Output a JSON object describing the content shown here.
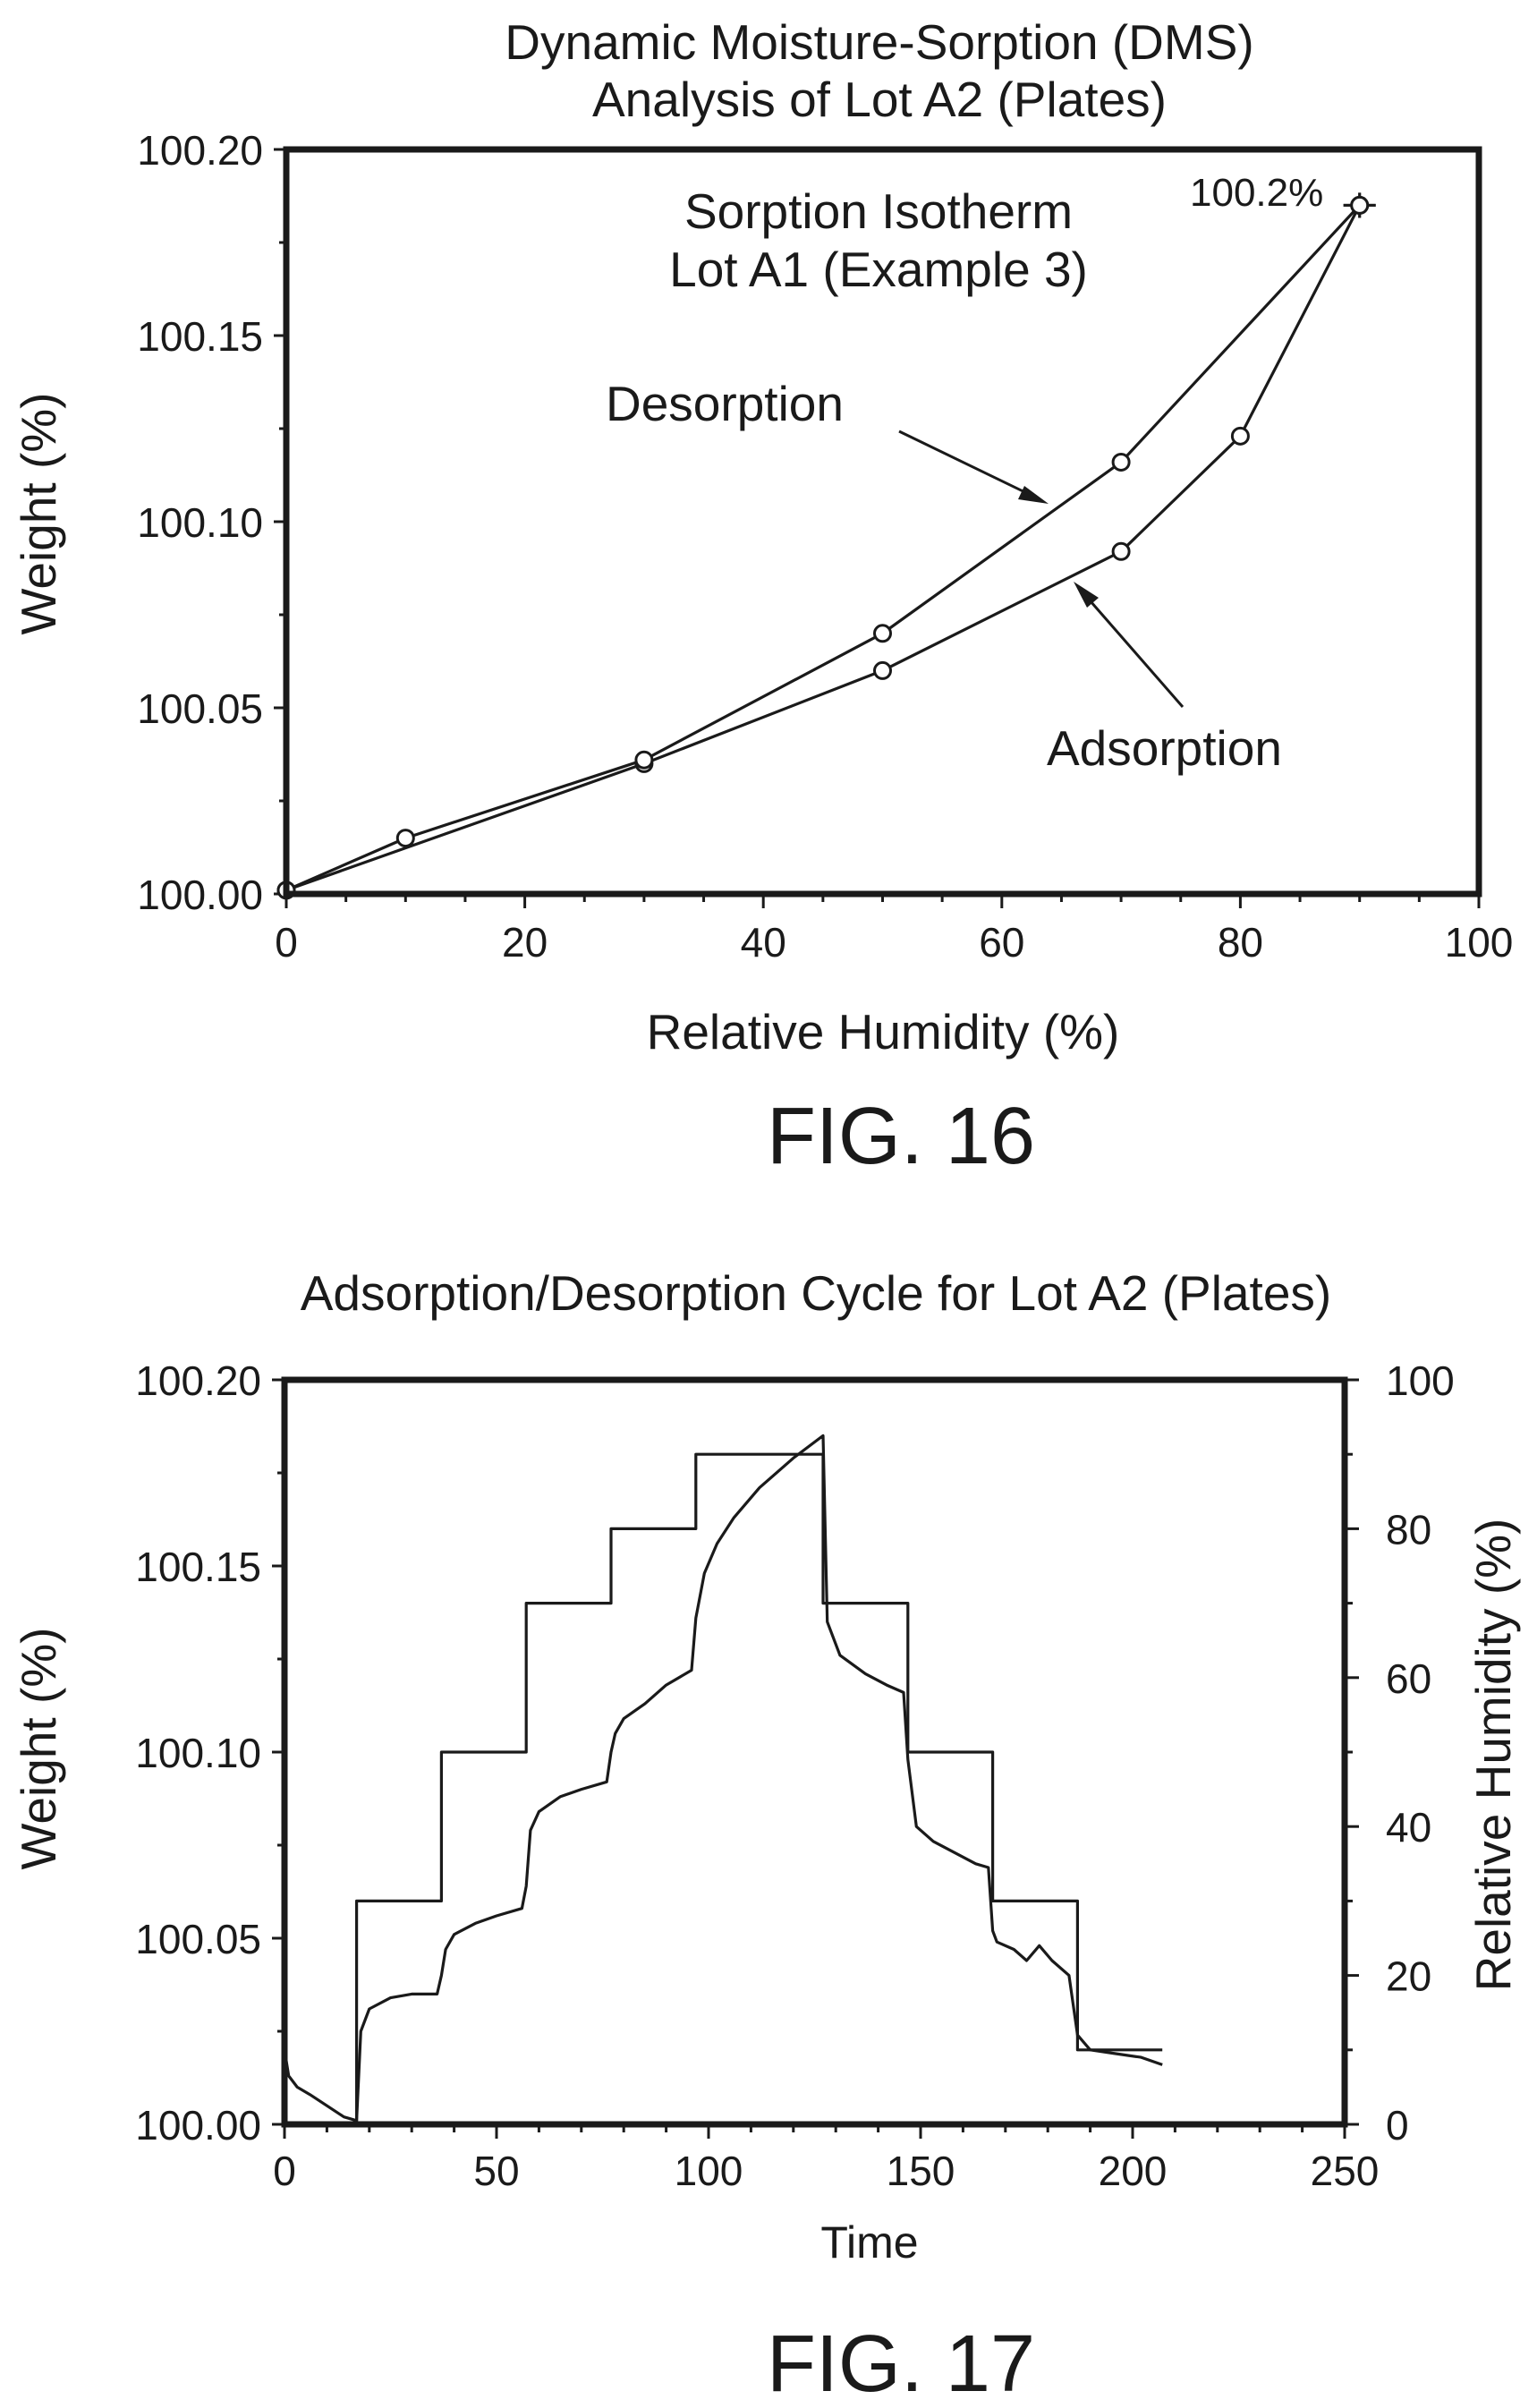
{
  "colors": {
    "ink": "#1a1a1a",
    "background": "#ffffff"
  },
  "chart_data": [
    {
      "figure_label": "FIG. 16",
      "type": "line",
      "title": [
        "Dynamic Moisture-Sorption (DMS)",
        "Analysis of Lot A2 (Plates)"
      ],
      "inner_title": [
        "Sorption Isotherm",
        "Lot A1 (Example 3)"
      ],
      "xlabel": "Relative Humidity (%)",
      "ylabel": "Weight (%)",
      "xlim": [
        0,
        100
      ],
      "ylim": [
        100.0,
        100.2
      ],
      "xticks": [
        "0",
        "20",
        "40",
        "60",
        "80",
        "100"
      ],
      "yticks": [
        "100.00",
        "100.05",
        "100.10",
        "100.15",
        "100.20"
      ],
      "grid": false,
      "series": [
        {
          "name": "Adsorption",
          "x": [
            0,
            30,
            50,
            70,
            80,
            90
          ],
          "y": [
            100.001,
            100.035,
            100.06,
            100.092,
            100.123,
            100.185
          ]
        },
        {
          "name": "Desorption",
          "x": [
            90,
            70,
            50,
            30,
            10,
            0
          ],
          "y": [
            100.185,
            100.116,
            100.07,
            100.036,
            100.015,
            100.001
          ]
        }
      ],
      "annotations": [
        "100.2%"
      ]
    },
    {
      "figure_label": "FIG. 17",
      "type": "line",
      "title": "Adsorption/Desorption Cycle for Lot A2 (Plates)",
      "xlabel": "Time",
      "ylabel": "Weight (%)",
      "y2label": "Relative Humidity (%)",
      "xlim": [
        0,
        250
      ],
      "ylim": [
        100.0,
        100.2
      ],
      "y2lim": [
        0,
        100
      ],
      "xticks": [
        "0",
        "50",
        "100",
        "150",
        "200",
        "250"
      ],
      "yticks": [
        "100.00",
        "100.05",
        "100.10",
        "100.15",
        "100.20"
      ],
      "y2ticks": [
        "0",
        "20",
        "40",
        "60",
        "80",
        "100"
      ],
      "grid": false,
      "series": [
        {
          "axis": "right",
          "x": [
            0,
            17,
            17,
            37,
            37,
            57,
            57,
            77,
            77,
            97,
            97,
            127,
            127,
            147,
            147,
            167,
            167,
            187,
            187,
            207
          ],
          "y": [
            0,
            0,
            30,
            30,
            50,
            50,
            70,
            70,
            80,
            80,
            90,
            90,
            70,
            70,
            50,
            50,
            30,
            30,
            10,
            10
          ]
        },
        {
          "axis": "left",
          "x": [
            0,
            1,
            3,
            6,
            10,
            14,
            17,
            18,
            20,
            25,
            30,
            36,
            37,
            38,
            40,
            45,
            50,
            56,
            57,
            58,
            60,
            65,
            70,
            76,
            77,
            78,
            80,
            85,
            90,
            96,
            97,
            99,
            102,
            106,
            112,
            120,
            127,
            128,
            131,
            137,
            142,
            146,
            147,
            149,
            153,
            158,
            163,
            166,
            167,
            168,
            172,
            175,
            178,
            181,
            185,
            187,
            190,
            196,
            202,
            207
          ],
          "y": [
            100.02,
            100.013,
            100.01,
            100.008,
            100.005,
            100.002,
            100.001,
            100.025,
            100.031,
            100.034,
            100.035,
            100.035,
            100.04,
            100.047,
            100.051,
            100.054,
            100.056,
            100.058,
            100.064,
            100.079,
            100.084,
            100.088,
            100.09,
            100.092,
            100.1,
            100.105,
            100.109,
            100.113,
            100.118,
            100.122,
            100.136,
            100.148,
            100.156,
            100.163,
            100.171,
            100.179,
            100.185,
            100.135,
            100.126,
            100.121,
            100.118,
            100.116,
            100.098,
            100.08,
            100.076,
            100.073,
            100.07,
            100.069,
            100.052,
            100.049,
            100.047,
            100.044,
            100.048,
            100.044,
            100.04,
            100.024,
            100.02,
            100.019,
            100.018,
            100.016
          ]
        }
      ]
    }
  ]
}
